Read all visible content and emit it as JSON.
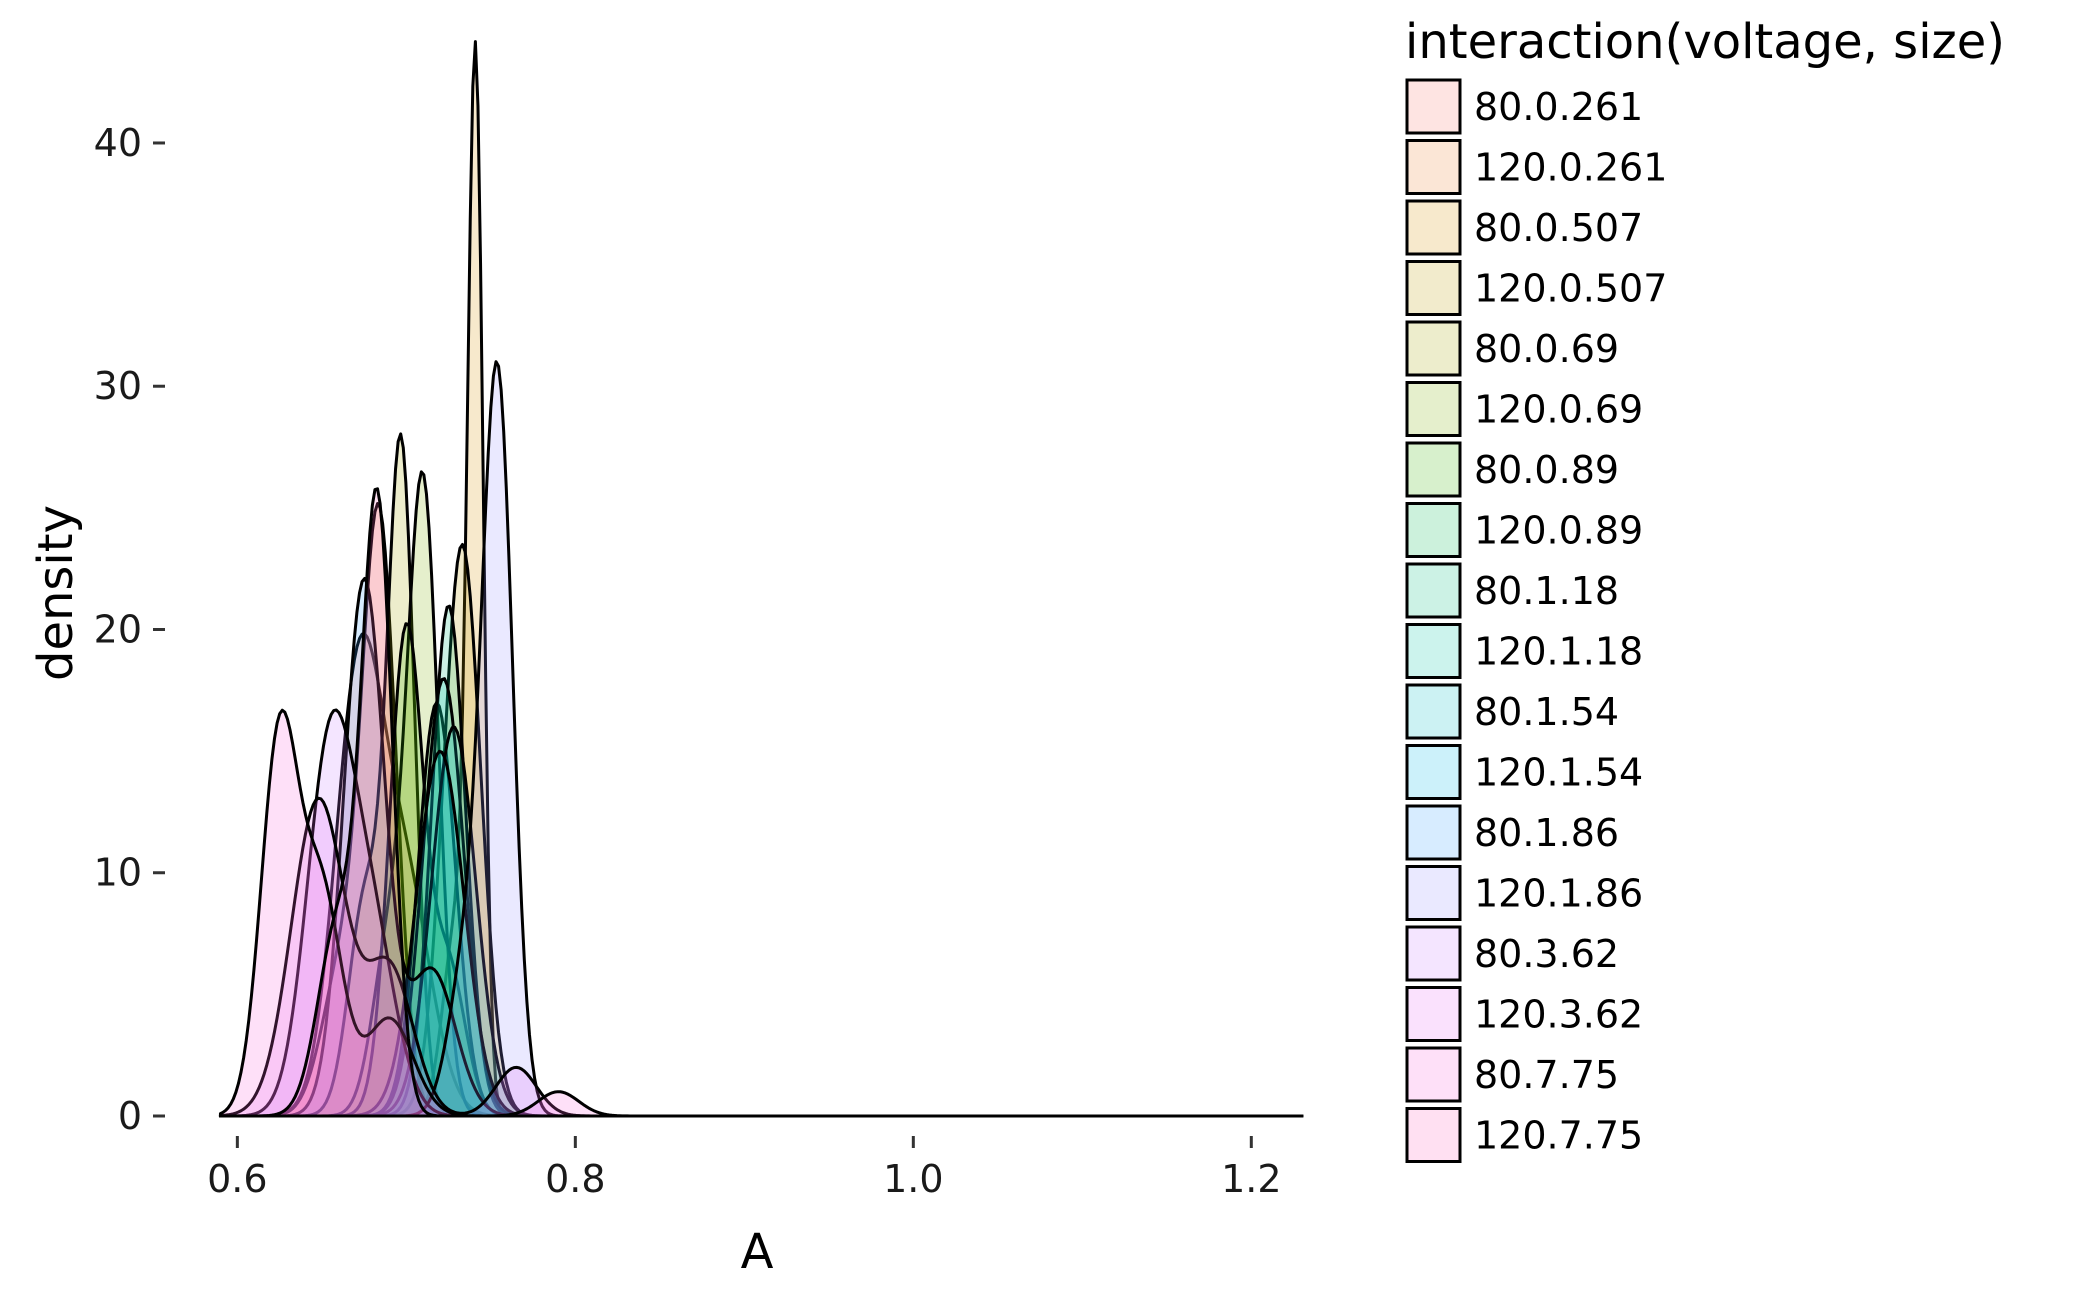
{
  "chart_data": {
    "type": "area",
    "xlabel": "A",
    "ylabel": "density",
    "xlim": [
      0.585,
      1.23
    ],
    "ylim": [
      0,
      43
    ],
    "x_ticks": [
      0.6,
      0.8,
      1.0,
      1.2
    ],
    "x_tick_labels": [
      "0.6",
      "0.8",
      "1.0",
      "1.2"
    ],
    "y_ticks": [
      0,
      10,
      20,
      30,
      40
    ],
    "y_tick_labels": [
      "0",
      "10",
      "20",
      "30",
      "40"
    ],
    "grid": false,
    "legend": {
      "title": "interaction(voltage, size)",
      "placement": "right"
    },
    "series": [
      {
        "name": "80.0.261",
        "color": "#f8766d",
        "peaks": [
          [
            0.672,
            18.0,
            0.014
          ],
          [
            0.7,
            9.0,
            0.015
          ]
        ]
      },
      {
        "name": "120.0.261",
        "color": "#ea8331",
        "peaks": [
          [
            0.684,
            24.0,
            0.01
          ],
          [
            0.662,
            6.0,
            0.012
          ]
        ]
      },
      {
        "name": "80.0.507",
        "color": "#d89000",
        "peaks": [
          [
            0.741,
            41.0,
            0.0045
          ],
          [
            0.73,
            8.0,
            0.008
          ]
        ]
      },
      {
        "name": "120.0.507",
        "color": "#c09b00",
        "peaks": [
          [
            0.733,
            23.5,
            0.011
          ]
        ]
      },
      {
        "name": "80.0.69",
        "color": "#a3a500",
        "peaks": [
          [
            0.697,
            27.0,
            0.008
          ],
          [
            0.676,
            9.0,
            0.01
          ]
        ]
      },
      {
        "name": "120.0.69",
        "color": "#7cae00",
        "peaks": [
          [
            0.71,
            25.5,
            0.009
          ],
          [
            0.69,
            7.0,
            0.01
          ]
        ]
      },
      {
        "name": "80.0.89",
        "color": "#39b600",
        "peaks": [
          [
            0.7,
            20.0,
            0.01
          ],
          [
            0.725,
            6.0,
            0.01
          ]
        ]
      },
      {
        "name": "120.0.89",
        "color": "#00bb4e",
        "peaks": [
          [
            0.718,
            17.0,
            0.011
          ]
        ]
      },
      {
        "name": "80.1.18",
        "color": "#00bf7d",
        "peaks": [
          [
            0.725,
            21.0,
            0.01
          ]
        ]
      },
      {
        "name": "120.1.18",
        "color": "#00c1a3",
        "peaks": [
          [
            0.722,
            18.0,
            0.012
          ]
        ]
      },
      {
        "name": "80.1.54",
        "color": "#00bfc4",
        "peaks": [
          [
            0.728,
            16.0,
            0.013
          ]
        ]
      },
      {
        "name": "120.1.54",
        "color": "#00b8e7",
        "peaks": [
          [
            0.72,
            15.0,
            0.014
          ]
        ]
      },
      {
        "name": "80.1.86",
        "color": "#35a2ff",
        "peaks": [
          [
            0.675,
            22.0,
            0.012
          ],
          [
            0.715,
            6.0,
            0.014
          ]
        ]
      },
      {
        "name": "120.1.86",
        "color": "#9590ff",
        "peaks": [
          [
            0.754,
            30.0,
            0.009
          ],
          [
            0.735,
            6.0,
            0.01
          ]
        ]
      },
      {
        "name": "80.3.62",
        "color": "#c77cff",
        "peaks": [
          [
            0.655,
            15.0,
            0.014
          ],
          [
            0.68,
            7.0,
            0.014
          ]
        ]
      },
      {
        "name": "120.3.62",
        "color": "#e76bf3",
        "peaks": [
          [
            0.648,
            13.0,
            0.016
          ],
          [
            0.69,
            6.0,
            0.014
          ],
          [
            0.765,
            2.0,
            0.012
          ]
        ]
      },
      {
        "name": "80.7.75",
        "color": "#fa62db",
        "peaks": [
          [
            0.625,
            15.5,
            0.011
          ],
          [
            0.65,
            9.0,
            0.012
          ],
          [
            0.69,
            4.0,
            0.014
          ],
          [
            0.79,
            1.0,
            0.012
          ]
        ]
      },
      {
        "name": "120.7.75",
        "color": "#ff62bc",
        "peaks": [
          [
            0.683,
            24.5,
            0.009
          ],
          [
            0.66,
            8.0,
            0.012
          ]
        ]
      }
    ]
  }
}
